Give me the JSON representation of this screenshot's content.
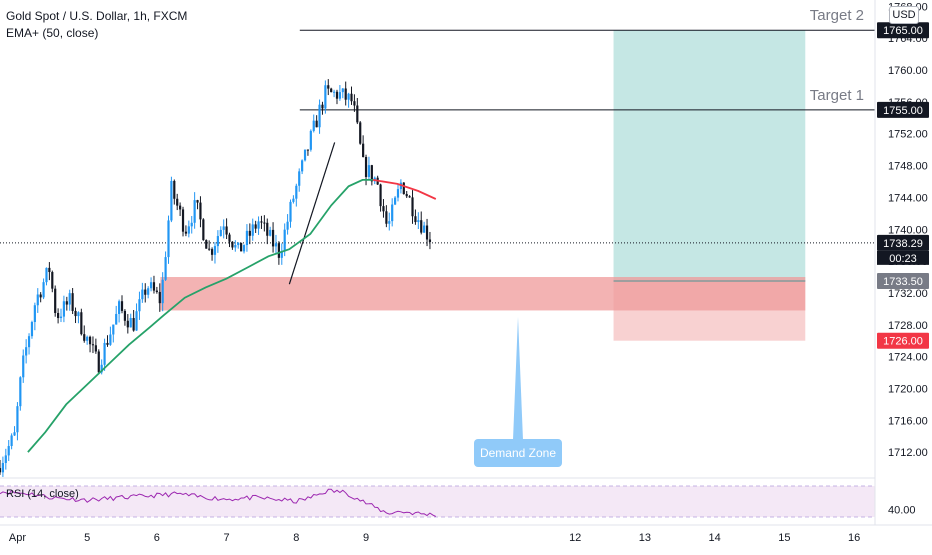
{
  "legend": {
    "title": "Gold Spot / U.S. Dollar, 1h, FXCM",
    "ema": "EMA+ (50, close)",
    "rsi": "RSI (14, close)"
  },
  "currency_button": "USD",
  "colors": {
    "up": "#2196f3",
    "down": "#131722",
    "ema": "#26a269",
    "ema_tail": "#f23645",
    "target_zone": "#b2dfdb",
    "stop_zone": "#ef9a9a",
    "demand_zone": "#ffcdd2",
    "callout": "#90caf9",
    "rsi_band": "#f3e5f5",
    "rsi_line": "#9c27b0"
  },
  "chart_data": {
    "type": "candlestick",
    "symbol": "XAUUSD",
    "timeframe": "1h",
    "y_axis": {
      "range": [
        1708.5,
        1768.8
      ],
      "tick_labels": [
        "1712.00",
        "1716.00",
        "1720.00",
        "1724.00",
        "1728.00",
        "1732.00",
        "1736.00",
        "1740.00",
        "1744.00",
        "1748.00",
        "1752.00",
        "1756.00",
        "1760.00",
        "1764.00",
        "1768.00"
      ]
    },
    "x_axis": {
      "range_days": [
        3.75,
        16.3
      ],
      "tick_labels": [
        {
          "day": 4,
          "label": "Apr"
        },
        {
          "day": 5,
          "label": "5"
        },
        {
          "day": 6,
          "label": "6"
        },
        {
          "day": 7,
          "label": "7"
        },
        {
          "day": 8,
          "label": "8"
        },
        {
          "day": 9,
          "label": "9"
        },
        {
          "day": 12,
          "label": "12"
        },
        {
          "day": 13,
          "label": "13"
        },
        {
          "day": 14,
          "label": "14"
        },
        {
          "day": 15,
          "label": "15"
        },
        {
          "day": 16,
          "label": "16"
        }
      ]
    },
    "candle_path": [
      [
        3.75,
        1710
      ],
      [
        4.0,
        1714
      ],
      [
        4.1,
        1722
      ],
      [
        4.3,
        1731
      ],
      [
        4.5,
        1735
      ],
      [
        4.6,
        1729
      ],
      [
        4.8,
        1731
      ],
      [
        5.0,
        1727
      ],
      [
        5.2,
        1723
      ],
      [
        5.5,
        1730
      ],
      [
        5.7,
        1728
      ],
      [
        5.9,
        1733
      ],
      [
        6.1,
        1731
      ],
      [
        6.25,
        1745
      ],
      [
        6.45,
        1740
      ],
      [
        6.6,
        1743
      ],
      [
        6.8,
        1737
      ],
      [
        7.0,
        1741
      ],
      [
        7.2,
        1737
      ],
      [
        7.5,
        1741
      ],
      [
        7.8,
        1737
      ],
      [
        8.0,
        1744
      ],
      [
        8.2,
        1750
      ],
      [
        8.45,
        1757
      ],
      [
        8.65,
        1757
      ],
      [
        8.85,
        1756
      ],
      [
        9.0,
        1748
      ],
      [
        9.2,
        1746
      ],
      [
        9.35,
        1740
      ],
      [
        9.55,
        1746
      ],
      [
        9.75,
        1742
      ],
      [
        9.95,
        1739
      ]
    ],
    "ema": [
      [
        4.15,
        1712
      ],
      [
        4.4,
        1714.5
      ],
      [
        4.7,
        1718
      ],
      [
        5.0,
        1720.5
      ],
      [
        5.3,
        1723
      ],
      [
        5.6,
        1725.5
      ],
      [
        5.9,
        1727.7
      ],
      [
        6.1,
        1729.2
      ],
      [
        6.4,
        1731.4
      ],
      [
        6.7,
        1732.7
      ],
      [
        7.0,
        1733.8
      ],
      [
        7.3,
        1735.2
      ],
      [
        7.6,
        1736.6
      ],
      [
        7.9,
        1737.5
      ],
      [
        8.2,
        1739.4
      ],
      [
        8.5,
        1743
      ],
      [
        8.75,
        1745.4
      ],
      [
        8.95,
        1746.2
      ],
      [
        9.1,
        1746.2
      ]
    ],
    "ema_tail": [
      [
        9.1,
        1746.2
      ],
      [
        9.45,
        1745.7
      ],
      [
        9.75,
        1744.8
      ],
      [
        10.0,
        1743.8
      ]
    ],
    "current_price": 1738.29,
    "countdown": "00:23",
    "entry_price": 1733.5,
    "stop_price": 1726.0,
    "target_1": {
      "label": "Target 1",
      "price": 1755.0
    },
    "target_2": {
      "label": "Target 2",
      "price": 1765.0
    },
    "price_tags": {
      "current": "1738.29",
      "entry": "1733.50",
      "stop": "1726.00",
      "target_1": "1755.00",
      "target_2": "1765.00"
    },
    "position_box": {
      "start_day": 12.55,
      "end_day": 15.3
    },
    "demand_zone": {
      "label": "Demand Zone",
      "top": 1734.0,
      "bottom": 1729.8,
      "start_day": 6.05,
      "end_day": 12.55
    },
    "trend_line": [
      [
        7.9,
        1733.1
      ],
      [
        8.55,
        1750.9
      ]
    ],
    "rsi": {
      "label": "RSI (14, close)",
      "tick_label": "40.00",
      "line": [
        [
          3.75,
          63
        ],
        [
          4.2,
          60
        ],
        [
          4.5,
          55
        ],
        [
          5.0,
          52
        ],
        [
          5.5,
          55
        ],
        [
          6.0,
          58
        ],
        [
          6.3,
          60
        ],
        [
          6.6,
          56
        ],
        [
          7.0,
          53
        ],
        [
          7.4,
          55
        ],
        [
          7.8,
          52
        ],
        [
          8.0,
          50
        ],
        [
          8.2,
          55
        ],
        [
          8.45,
          64
        ],
        [
          8.7,
          62
        ],
        [
          9.0,
          48
        ],
        [
          9.3,
          35
        ],
        [
          9.5,
          37
        ],
        [
          9.8,
          34
        ],
        [
          10.0,
          33
        ]
      ]
    }
  }
}
